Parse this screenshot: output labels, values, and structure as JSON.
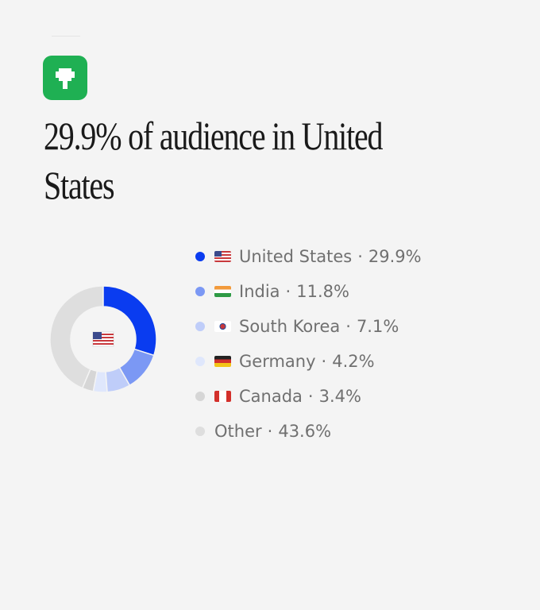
{
  "chart_data": {
    "type": "pie",
    "donut": true,
    "title": "29.9% of audience in United States",
    "categories": [
      "United States",
      "India",
      "South Korea",
      "Germany",
      "Canada",
      "Other"
    ],
    "values": [
      29.9,
      11.8,
      7.1,
      4.2,
      3.4,
      43.6
    ],
    "value_labels": [
      "29.9%",
      "11.8%",
      "7.1%",
      "4.2%",
      "3.4%",
      "43.6%"
    ],
    "separator": "·",
    "colors": [
      "#0a3cf0",
      "#7b98f4",
      "#bfcdf9",
      "#dfe7fc",
      "#d6d6d6",
      "#dedede"
    ]
  }
}
